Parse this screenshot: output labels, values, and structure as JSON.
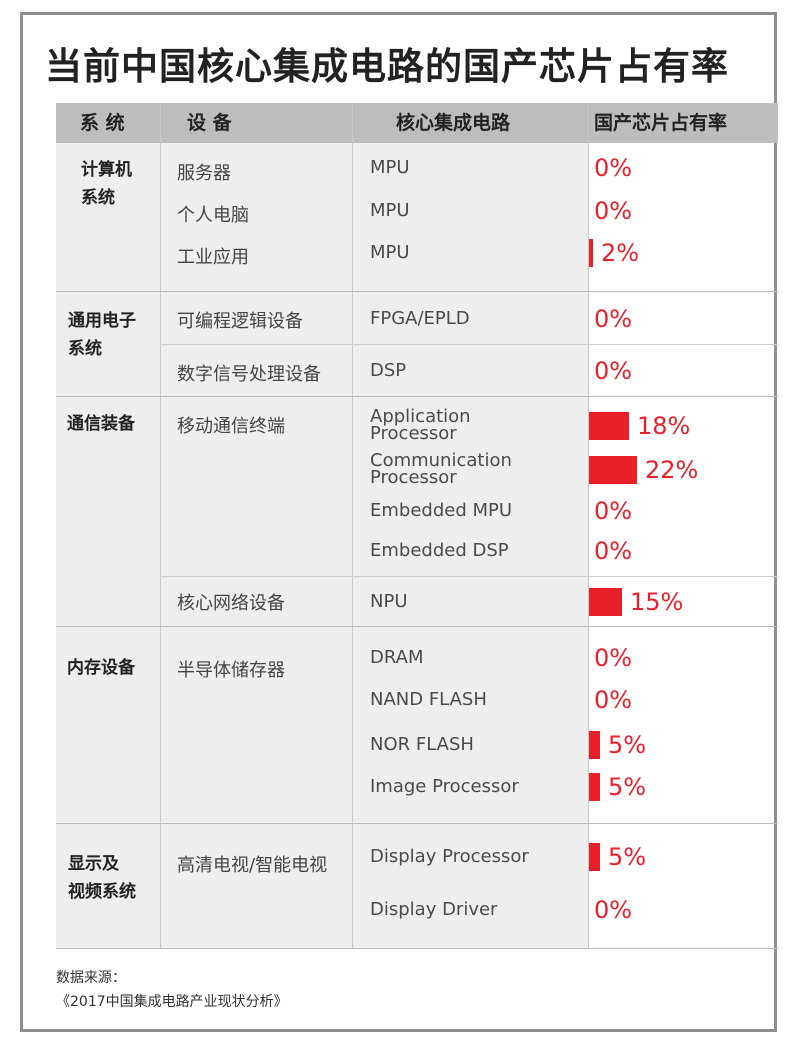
{
  "title": "当前中国核心集成电路的国产芯片占有率",
  "headers": [
    "系 统",
    "设 备",
    "核心集成电路",
    "国产芯片占有率"
  ],
  "groups": [
    {
      "system": [
        "计算机",
        "系统"
      ]
    },
    {
      "system": [
        "通用电子",
        "系统"
      ]
    },
    {
      "system": [
        "通信装备"
      ]
    },
    {
      "system": [
        "内存设备"
      ]
    },
    {
      "system": [
        "显示及",
        "视频系统"
      ]
    }
  ],
  "devices": [
    "服务器",
    "个人电脑",
    "工业应用",
    "可编程逻辑设备",
    "数字信号处理设备",
    "移动通信终端",
    "核心网络设备",
    "半导体储存器",
    "高清电视/智能电视"
  ],
  "source": {
    "line1": "数据来源：",
    "line2": "《2017中国集成电路产业现状分析》"
  },
  "chart_data": {
    "type": "bar",
    "title": "当前中国核心集成电路的国产芯片占有率",
    "categories": [
      "MPU",
      "MPU",
      "MPU",
      "FPGA/EPLD",
      "DSP",
      "Application Processor",
      "Communication Processor",
      "Embedded MPU",
      "Embedded DSP",
      "NPU",
      "DRAM",
      "NAND FLASH",
      "NOR FLASH",
      "Image Processor",
      "Display Processor",
      "Display Driver"
    ],
    "values": [
      0,
      0,
      2,
      0,
      0,
      18,
      22,
      0,
      0,
      15,
      0,
      0,
      5,
      5,
      5,
      0
    ],
    "labels": [
      "0%",
      "0%",
      "2%",
      "0%",
      "0%",
      "18%",
      "22%",
      "0%",
      "0%",
      "15%",
      "0%",
      "0%",
      "5%",
      "5%",
      "5%",
      "0%"
    ],
    "xlabel": "",
    "ylabel": "国产芯片占有率",
    "accent": "#e8202a"
  }
}
